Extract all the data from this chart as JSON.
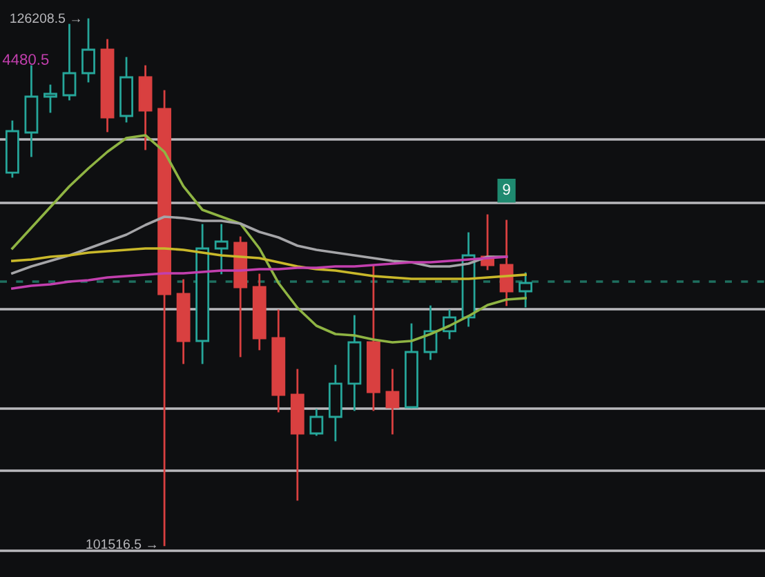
{
  "chart_data": {
    "type": "candlestick",
    "categories": [
      null,
      null,
      null,
      null,
      null,
      null,
      null,
      null,
      null,
      null,
      null,
      null,
      null,
      null,
      null,
      null,
      null,
      null,
      null,
      null,
      null,
      null,
      null,
      null,
      null,
      null,
      null,
      null
    ],
    "ohlc": [
      [
        119014,
        121412,
        118820,
        120959
      ],
      [
        120894,
        124005,
        119792,
        122579
      ],
      [
        122579,
        123098,
        121866,
        122709
      ],
      [
        122644,
        125949,
        122449,
        123681
      ],
      [
        123681,
        126208.5,
        123292,
        124783
      ],
      [
        124783,
        125236,
        120959,
        121607
      ],
      [
        121672,
        124394,
        121412,
        123487
      ],
      [
        123487,
        124005,
        120116,
        121931
      ],
      [
        121996,
        122838,
        101516.5,
        113311
      ],
      [
        113311,
        113960,
        110071,
        111108
      ],
      [
        111108,
        116552,
        110071,
        115450
      ],
      [
        115450,
        116552,
        114284,
        115774
      ],
      [
        115709,
        115968,
        110395,
        113635
      ],
      [
        113635,
        114219,
        110719,
        111237
      ],
      [
        111237,
        112534,
        107802,
        108580
      ],
      [
        108580,
        109747,
        103655,
        106765
      ],
      [
        106765,
        107867,
        106701,
        107543
      ],
      [
        107543,
        109941,
        106442,
        109099
      ],
      [
        109099,
        112274,
        107867,
        111043
      ],
      [
        111043,
        114608,
        107867,
        108710
      ],
      [
        108710,
        109747,
        106765,
        107997
      ],
      [
        107997,
        111886,
        107997,
        110589
      ],
      [
        110589,
        112728,
        110265,
        111562
      ],
      [
        111562,
        112534,
        111237,
        112210
      ],
      [
        112210,
        116163,
        111821,
        115126
      ],
      [
        115061,
        117006,
        114478,
        114672
      ],
      [
        114672,
        116747,
        112793,
        113441
      ],
      [
        113441,
        114284,
        112728,
        113830
      ]
    ],
    "series": [
      {
        "type": "line",
        "color": "#8fb443",
        "values": [
          115450,
          116422,
          117394,
          118367,
          119209,
          119987,
          120635,
          120765,
          119987,
          118367,
          117265,
          116941,
          116617,
          115450,
          113830,
          112663,
          111821,
          111432,
          111367,
          111173,
          111043,
          111108,
          111432,
          111821,
          112275,
          112793,
          113052,
          113117
        ]
      },
      {
        "type": "line",
        "color": "#a5a5a8",
        "values": [
          114284,
          114608,
          114867,
          115126,
          115450,
          115774,
          116098,
          116552,
          116941,
          116876,
          116746,
          116746,
          116617,
          116228,
          115969,
          115580,
          115385,
          115256,
          115126,
          114997,
          114867,
          114802,
          114608,
          114608,
          114737,
          115061,
          115061,
          null
        ]
      },
      {
        "type": "line",
        "color": "#c9b82a",
        "values": [
          114867,
          114932,
          115061,
          115126,
          115256,
          115321,
          115385,
          115450,
          115450,
          115385,
          115256,
          115126,
          115061,
          114997,
          114802,
          114608,
          114478,
          114413,
          114284,
          114154,
          114089,
          114024,
          114024,
          114024,
          114024,
          114089,
          114154,
          114219
        ]
      },
      {
        "type": "line",
        "color": "#c23fae",
        "values": [
          113571,
          113700,
          113765,
          113895,
          113960,
          114089,
          114154,
          114219,
          114284,
          114284,
          114348,
          114413,
          114413,
          114478,
          114478,
          114543,
          114543,
          114608,
          114608,
          114672,
          114737,
          114802,
          114802,
          114867,
          114932,
          114997,
          115061,
          null
        ]
      }
    ],
    "ylim": [
      100025,
      127116
    ],
    "ref_lines": [
      {
        "axis": "y",
        "value": 120570,
        "color": "#b8b8bc"
      },
      {
        "axis": "y",
        "value": 117588,
        "color": "#b8b8bc"
      },
      {
        "axis": "y",
        "value": 112599,
        "color": "#b8b8bc"
      },
      {
        "axis": "y",
        "value": 107932,
        "color": "#b8b8bc"
      },
      {
        "axis": "y",
        "value": 105016,
        "color": "#b8b8bc"
      },
      {
        "axis": "y",
        "value": 101257,
        "color": "#b8b8bc"
      },
      {
        "axis": "y",
        "value": 113894,
        "color": "#1e6f5f",
        "line_style": "dashed"
      }
    ],
    "annotations": [
      "126208.5 →",
      {
        "text": "101516.5 →",
        "y": 101516.5
      },
      {
        "text": "9",
        "y": 116747
      },
      "4480.5"
    ],
    "grid": false
  }
}
